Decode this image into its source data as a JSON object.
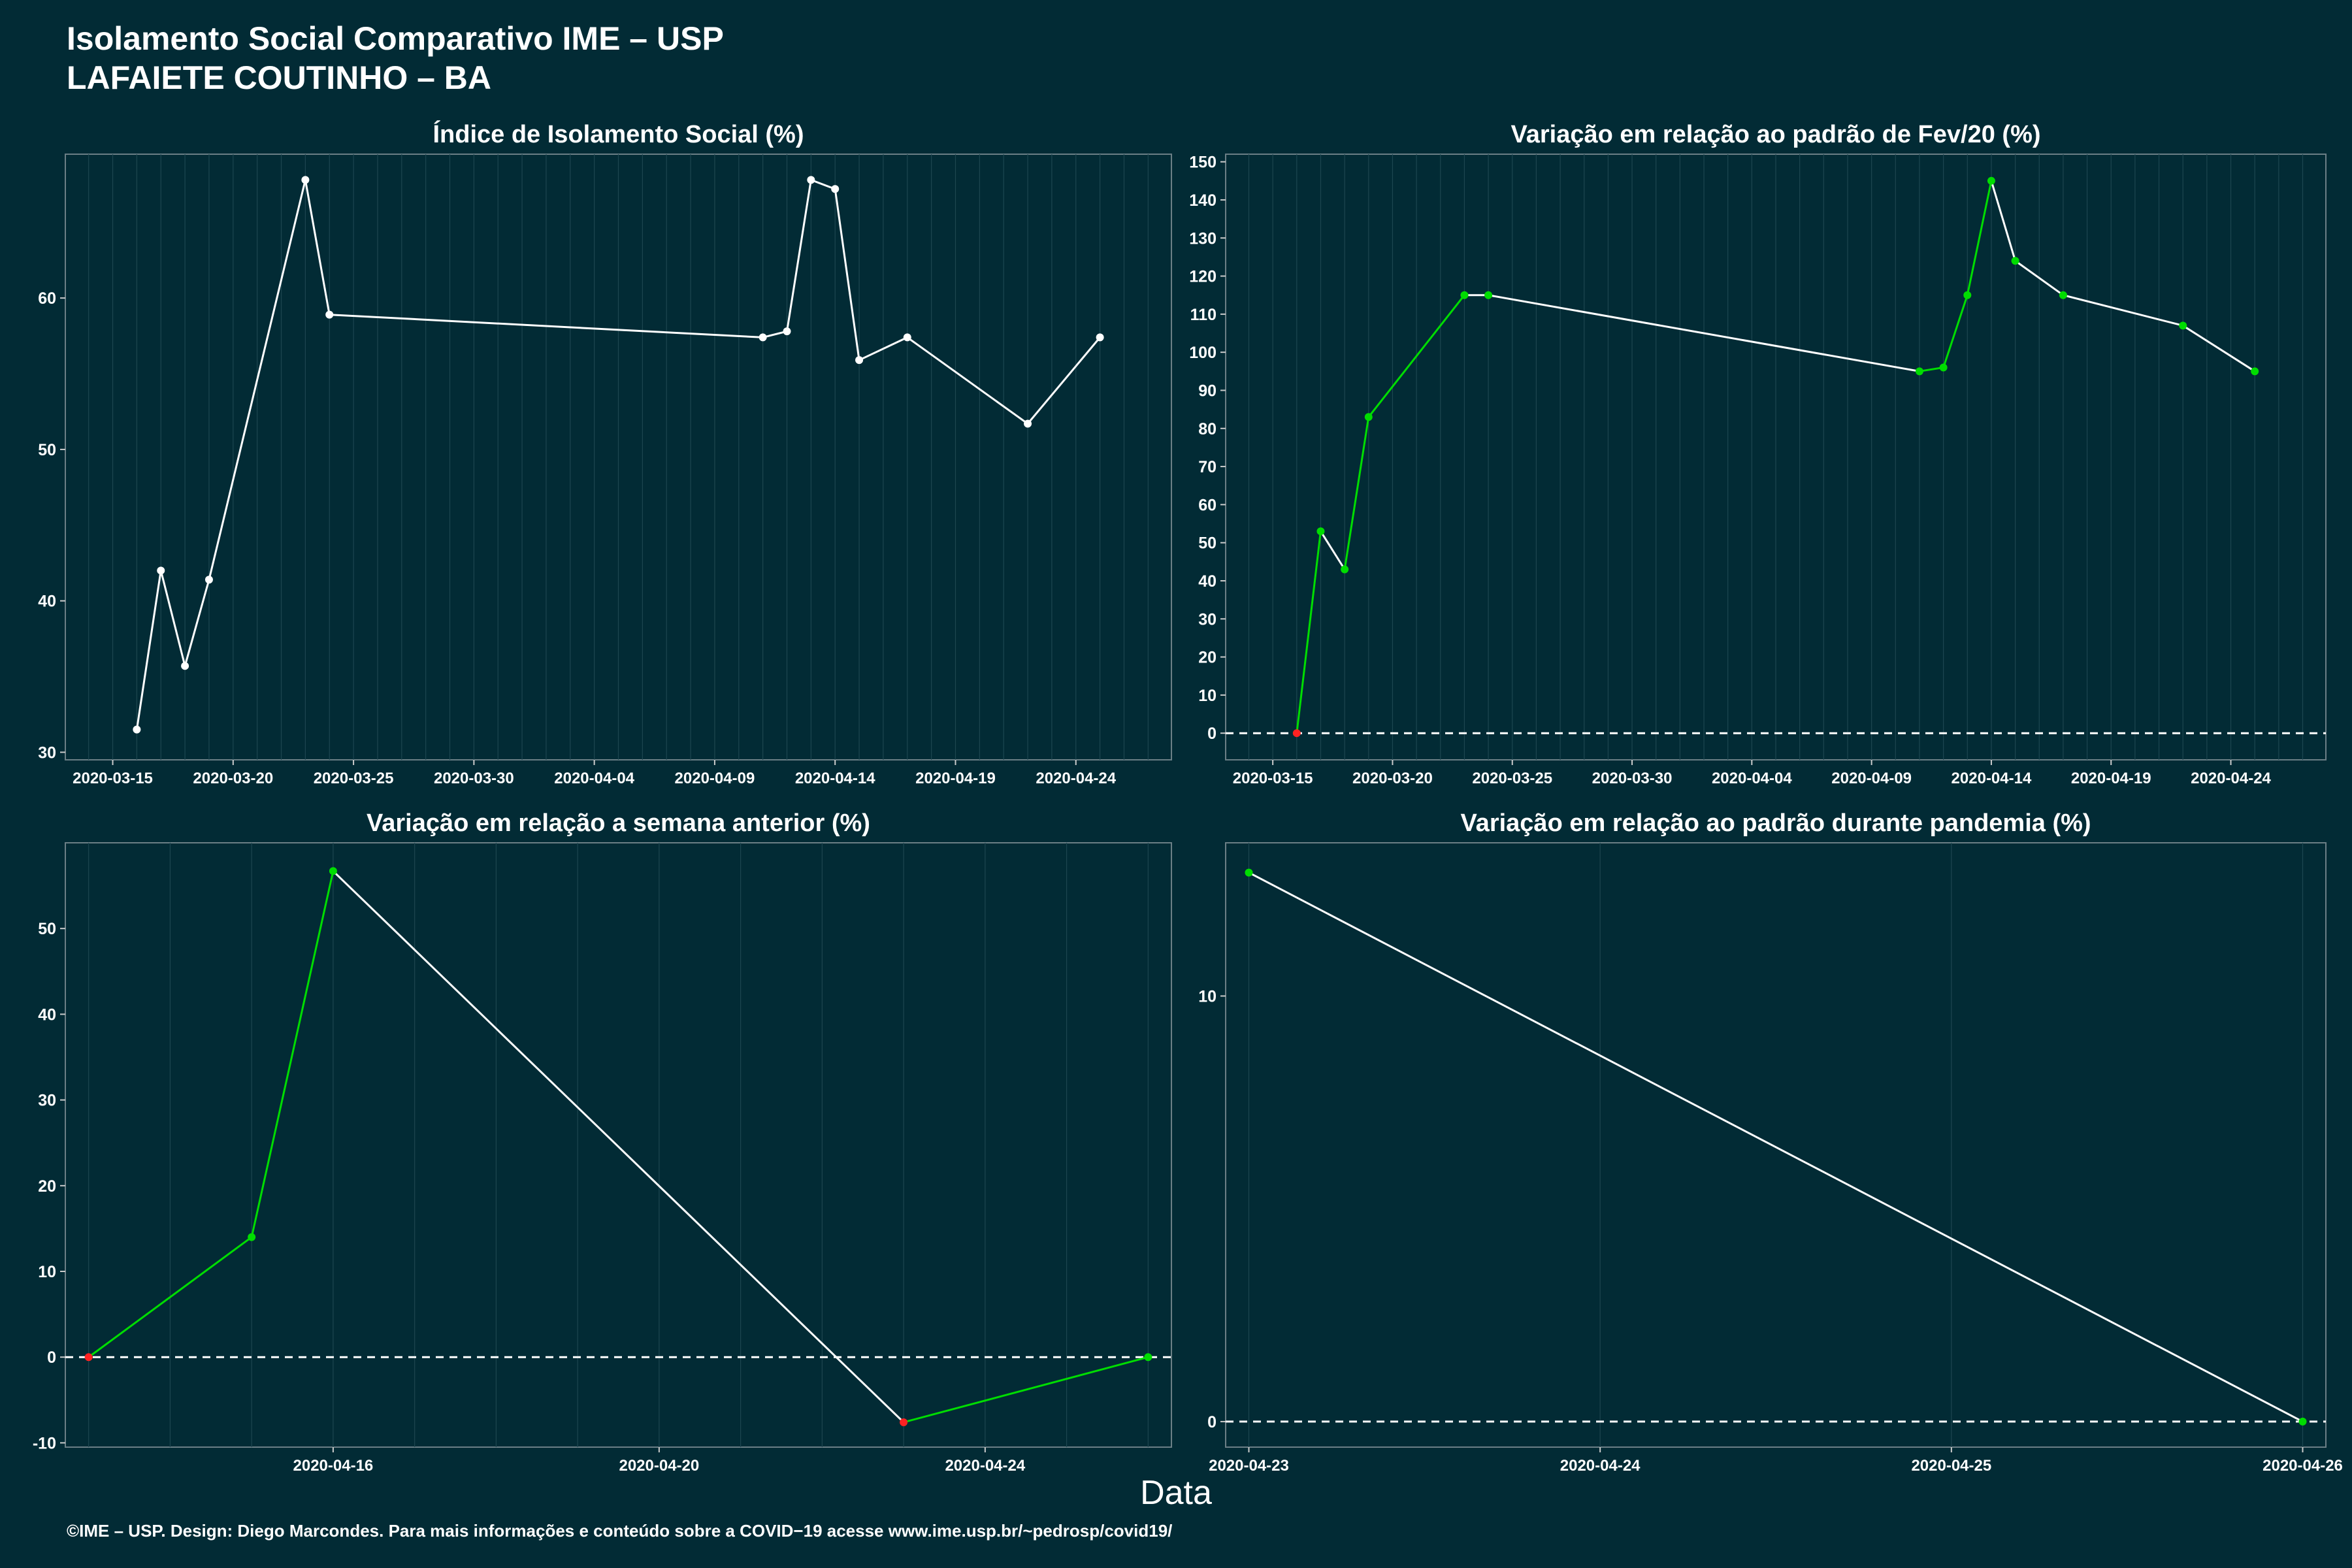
{
  "header": {
    "title_line1": "Isolamento Social Comparativo IME – USP",
    "title_line2": "LAFAIETE COUTINHO – BA"
  },
  "x_axis_label": "Data",
  "footer": "©IME – USP. Design: Diego Marcondes. Para mais informações e conteúdo sobre a COVID−19 acesse www.ime.usp.br/~pedrosp/covid19/",
  "colors": {
    "background": "#022b35",
    "line": "#ffffff",
    "increase": "#00dd00",
    "decrease": "#ff2222",
    "zero_line": "#ffffff"
  },
  "chart_data": [
    {
      "type": "line",
      "title": "Índice de Isolamento Social (%)",
      "x": [
        "2020-03-16",
        "2020-03-17",
        "2020-03-18",
        "2020-03-19",
        "2020-03-23",
        "2020-03-24",
        "2020-04-11",
        "2020-04-12",
        "2020-04-13",
        "2020-04-14",
        "2020-04-15",
        "2020-04-17",
        "2020-04-22",
        "2020-04-25"
      ],
      "y": [
        31.5,
        42.0,
        35.7,
        41.4,
        67.8,
        58.9,
        57.4,
        57.8,
        67.8,
        67.2,
        55.9,
        57.4,
        51.7,
        57.4
      ],
      "xlim": [
        "2020-03-14",
        "2020-04-27"
      ],
      "ylim": [
        29.5,
        69.5
      ],
      "yticks": [
        30,
        40,
        50,
        60
      ],
      "xticks": [
        "2020-03-15",
        "2020-03-20",
        "2020-03-25",
        "2020-03-30",
        "2020-04-04",
        "2020-04-09",
        "2020-04-14",
        "2020-04-19",
        "2020-04-24"
      ],
      "colored": false,
      "zero_line": false
    },
    {
      "type": "line",
      "title": "Variação em relação ao padrão de Fev/20 (%)",
      "x": [
        "2020-03-16",
        "2020-03-17",
        "2020-03-18",
        "2020-03-19",
        "2020-03-23",
        "2020-03-24",
        "2020-04-11",
        "2020-04-12",
        "2020-04-13",
        "2020-04-14",
        "2020-04-15",
        "2020-04-17",
        "2020-04-22",
        "2020-04-25"
      ],
      "y": [
        0,
        53,
        43,
        83,
        115,
        115,
        95,
        96,
        115,
        145,
        124,
        115,
        107,
        95
      ],
      "xlim": [
        "2020-03-14",
        "2020-04-27"
      ],
      "ylim": [
        -7,
        152
      ],
      "yticks": [
        0,
        10,
        20,
        30,
        40,
        50,
        60,
        70,
        80,
        90,
        100,
        110,
        120,
        130,
        140,
        150
      ],
      "xticks": [
        "2020-03-15",
        "2020-03-20",
        "2020-03-25",
        "2020-03-30",
        "2020-04-04",
        "2020-04-09",
        "2020-04-14",
        "2020-04-19",
        "2020-04-24"
      ],
      "colored": true,
      "zero_line": true
    },
    {
      "type": "line",
      "title": "Variação em relação a semana anterior (%)",
      "x": [
        "2020-04-13",
        "2020-04-15",
        "2020-04-16",
        "2020-04-23",
        "2020-04-26"
      ],
      "y": [
        0,
        14,
        56.7,
        -7.6,
        0
      ],
      "xlim": [
        "2020-04-13",
        "2020-04-26"
      ],
      "ylim": [
        -10.5,
        60
      ],
      "yticks": [
        -10,
        0,
        10,
        20,
        30,
        40,
        50
      ],
      "xticks": [
        "2020-04-16",
        "2020-04-20",
        "2020-04-24"
      ],
      "colored": true,
      "zero_line": true
    },
    {
      "type": "line",
      "title": "Variação em relação ao padrão durante pandemia (%)",
      "x": [
        "2020-04-23",
        "2020-04-26"
      ],
      "y": [
        12.9,
        0
      ],
      "xlim": [
        "2020-04-23",
        "2020-04-26"
      ],
      "ylim": [
        -0.6,
        13.6
      ],
      "yticks": [
        0,
        10
      ],
      "xticks": [
        "2020-04-23",
        "2020-04-24",
        "2020-04-25",
        "2020-04-26"
      ],
      "colored": true,
      "zero_line": true
    }
  ]
}
